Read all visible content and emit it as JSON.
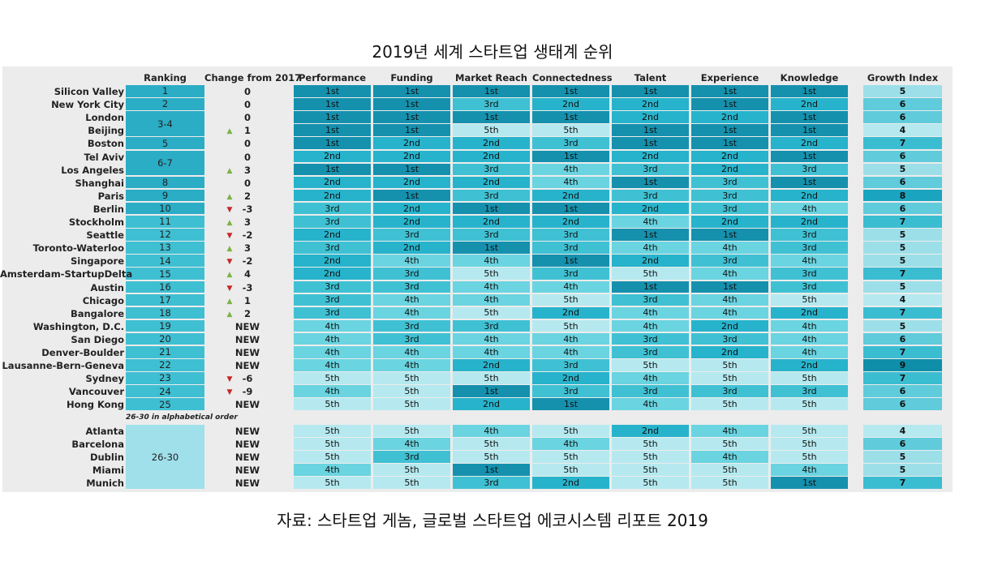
{
  "page_title": "2019년 세계 스타트업 생태계 순위",
  "source": "자료: 스타트업 게놈, 글로벌 스타트업 에코시스템 리포트 2019",
  "colors": {
    "1st": "#1591ae",
    "2nd": "#27b3cb",
    "3rd": "#3fc1d3",
    "4th": "#6ad4e0",
    "5th": "#b5e9ef",
    "up": "#7cb342",
    "down": "#c62828",
    "rank_top": "#2badc6",
    "rank_mid": "#3fbfd2",
    "rank_low": "#9fe0ea",
    "growth": {
      "4": "#b5e9ef",
      "5": "#9ddfe8",
      "6": "#5fcbdb",
      "7": "#3bbdd1",
      "8": "#1aa4bf",
      "9": "#0f8ea9"
    }
  },
  "chart_data": {
    "type": "table",
    "title": "2019년 세계 스타트업 생태계 순위",
    "headers": [
      "Ranking",
      "Change from 2017",
      "Performance",
      "Funding",
      "Market Reach",
      "Connectedness",
      "Talent",
      "Experience",
      "Knowledge",
      "Growth Index"
    ],
    "note": "26-30 in alphabetical order",
    "rows": [
      {
        "city": "Silicon Valley",
        "rank": "1",
        "change": "0",
        "arrow": "",
        "factors": [
          "1st",
          "1st",
          "1st",
          "1st",
          "1st",
          "1st",
          "1st"
        ],
        "growth": "5"
      },
      {
        "city": "New York City",
        "rank": "2",
        "change": "0",
        "arrow": "",
        "factors": [
          "1st",
          "1st",
          "3rd",
          "2nd",
          "2nd",
          "1st",
          "2nd"
        ],
        "growth": "6"
      },
      {
        "city": "London",
        "rank": "3-4",
        "change": "0",
        "arrow": "",
        "factors": [
          "1st",
          "1st",
          "1st",
          "1st",
          "2nd",
          "2nd",
          "1st"
        ],
        "growth": "6"
      },
      {
        "city": "Beijing",
        "rank": "",
        "change": "1",
        "arrow": "up",
        "factors": [
          "1st",
          "1st",
          "5th",
          "5th",
          "1st",
          "1st",
          "1st"
        ],
        "growth": "4"
      },
      {
        "city": "Boston",
        "rank": "5",
        "change": "0",
        "arrow": "",
        "factors": [
          "1st",
          "2nd",
          "2nd",
          "3rd",
          "1st",
          "1st",
          "2nd"
        ],
        "growth": "7"
      },
      {
        "city": "Tel Aviv",
        "rank": "6-7",
        "change": "0",
        "arrow": "",
        "factors": [
          "2nd",
          "2nd",
          "2nd",
          "1st",
          "2nd",
          "2nd",
          "1st"
        ],
        "growth": "6"
      },
      {
        "city": "Los Angeles",
        "rank": "",
        "change": "3",
        "arrow": "up",
        "factors": [
          "1st",
          "1st",
          "3rd",
          "4th",
          "3rd",
          "2nd",
          "3rd"
        ],
        "growth": "5"
      },
      {
        "city": "Shanghai",
        "rank": "8",
        "change": "0",
        "arrow": "",
        "factors": [
          "2nd",
          "2nd",
          "2nd",
          "4th",
          "1st",
          "3rd",
          "1st"
        ],
        "growth": "6"
      },
      {
        "city": "Paris",
        "rank": "9",
        "change": "2",
        "arrow": "up",
        "factors": [
          "2nd",
          "1st",
          "3rd",
          "2nd",
          "3rd",
          "3rd",
          "2nd"
        ],
        "growth": "8"
      },
      {
        "city": "Berlin",
        "rank": "10",
        "change": "-3",
        "arrow": "down",
        "factors": [
          "3rd",
          "2nd",
          "1st",
          "1st",
          "2nd",
          "3rd",
          "4th"
        ],
        "growth": "6"
      },
      {
        "city": "Stockholm",
        "rank": "11",
        "change": "3",
        "arrow": "up",
        "factors": [
          "3rd",
          "2nd",
          "2nd",
          "2nd",
          "4th",
          "2nd",
          "2nd"
        ],
        "growth": "7"
      },
      {
        "city": "Seattle",
        "rank": "12",
        "change": "-2",
        "arrow": "down",
        "factors": [
          "2nd",
          "3rd",
          "3rd",
          "3rd",
          "1st",
          "1st",
          "3rd"
        ],
        "growth": "5"
      },
      {
        "city": "Toronto-Waterloo",
        "rank": "13",
        "change": "3",
        "arrow": "up",
        "factors": [
          "3rd",
          "2nd",
          "1st",
          "3rd",
          "4th",
          "4th",
          "3rd"
        ],
        "growth": "5"
      },
      {
        "city": "Singapore",
        "rank": "14",
        "change": "-2",
        "arrow": "down",
        "factors": [
          "2nd",
          "4th",
          "4th",
          "1st",
          "2nd",
          "3rd",
          "4th"
        ],
        "growth": "5"
      },
      {
        "city": "Amsterdam-StartupDelta",
        "rank": "15",
        "change": "4",
        "arrow": "up",
        "factors": [
          "2nd",
          "3rd",
          "5th",
          "3rd",
          "5th",
          "4th",
          "3rd"
        ],
        "growth": "7"
      },
      {
        "city": "Austin",
        "rank": "16",
        "change": "-3",
        "arrow": "down",
        "factors": [
          "3rd",
          "3rd",
          "4th",
          "4th",
          "1st",
          "1st",
          "3rd"
        ],
        "growth": "5"
      },
      {
        "city": "Chicago",
        "rank": "17",
        "change": "1",
        "arrow": "up",
        "factors": [
          "3rd",
          "4th",
          "4th",
          "5th",
          "3rd",
          "4th",
          "5th"
        ],
        "growth": "4"
      },
      {
        "city": "Bangalore",
        "rank": "18",
        "change": "2",
        "arrow": "up",
        "factors": [
          "3rd",
          "4th",
          "5th",
          "2nd",
          "4th",
          "4th",
          "2nd"
        ],
        "growth": "7"
      },
      {
        "city": "Washington, D.C.",
        "rank": "19",
        "change": "NEW",
        "arrow": "",
        "factors": [
          "4th",
          "3rd",
          "3rd",
          "5th",
          "4th",
          "2nd",
          "4th"
        ],
        "growth": "5"
      },
      {
        "city": "San Diego",
        "rank": "20",
        "change": "NEW",
        "arrow": "",
        "factors": [
          "4th",
          "3rd",
          "4th",
          "4th",
          "3rd",
          "3rd",
          "4th"
        ],
        "growth": "6"
      },
      {
        "city": "Denver-Boulder",
        "rank": "21",
        "change": "NEW",
        "arrow": "",
        "factors": [
          "4th",
          "4th",
          "4th",
          "4th",
          "3rd",
          "2nd",
          "4th"
        ],
        "growth": "7"
      },
      {
        "city": "Lausanne-Bern-Geneva",
        "rank": "22",
        "change": "NEW",
        "arrow": "",
        "factors": [
          "4th",
          "4th",
          "2nd",
          "3rd",
          "5th",
          "5th",
          "2nd"
        ],
        "growth": "9"
      },
      {
        "city": "Sydney",
        "rank": "23",
        "change": "-6",
        "arrow": "down",
        "factors": [
          "5th",
          "5th",
          "5th",
          "2nd",
          "4th",
          "5th",
          "5th"
        ],
        "growth": "7"
      },
      {
        "city": "Vancouver",
        "rank": "24",
        "change": "-9",
        "arrow": "down",
        "factors": [
          "4th",
          "5th",
          "1st",
          "3rd",
          "3rd",
          "3rd",
          "3rd"
        ],
        "growth": "6"
      },
      {
        "city": "Hong Kong",
        "rank": "25",
        "change": "NEW",
        "arrow": "",
        "factors": [
          "5th",
          "5th",
          "2nd",
          "1st",
          "4th",
          "5th",
          "5th"
        ],
        "growth": "6"
      },
      {
        "city": "Atlanta",
        "rank": "",
        "change": "NEW",
        "arrow": "",
        "factors": [
          "5th",
          "5th",
          "4th",
          "5th",
          "2nd",
          "4th",
          "5th"
        ],
        "growth": "4"
      },
      {
        "city": "Barcelona",
        "rank": "",
        "change": "NEW",
        "arrow": "",
        "factors": [
          "5th",
          "4th",
          "5th",
          "4th",
          "5th",
          "5th",
          "5th"
        ],
        "growth": "6"
      },
      {
        "city": "Dublin",
        "rank": "26-30",
        "change": "NEW",
        "arrow": "",
        "factors": [
          "5th",
          "3rd",
          "5th",
          "5th",
          "5th",
          "4th",
          "5th"
        ],
        "growth": "5"
      },
      {
        "city": "Miami",
        "rank": "",
        "change": "NEW",
        "arrow": "",
        "factors": [
          "4th",
          "5th",
          "1st",
          "5th",
          "5th",
          "5th",
          "4th"
        ],
        "growth": "5"
      },
      {
        "city": "Munich",
        "rank": "",
        "change": "NEW",
        "arrow": "",
        "factors": [
          "5th",
          "5th",
          "3rd",
          "2nd",
          "5th",
          "5th",
          "1st"
        ],
        "growth": "7"
      }
    ]
  }
}
